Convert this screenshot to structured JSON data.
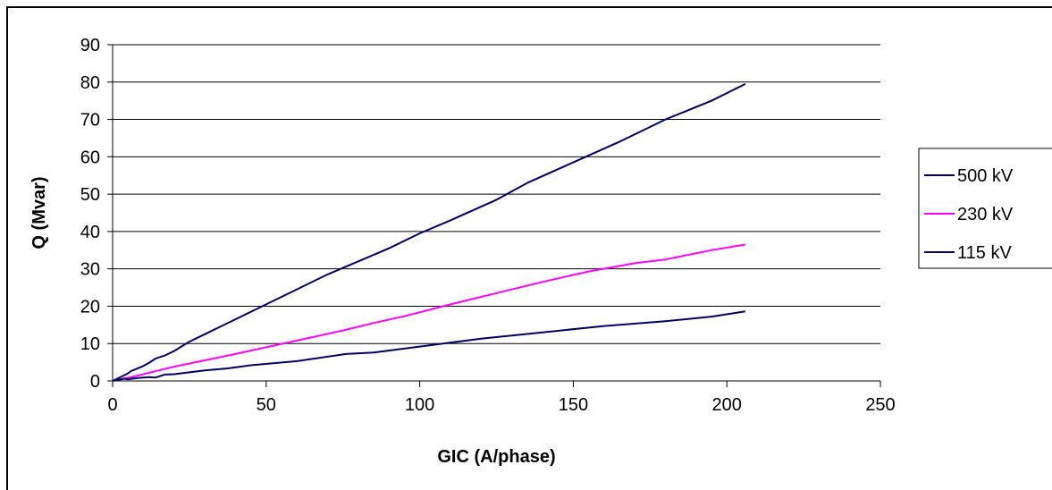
{
  "chart_data": {
    "type": "line",
    "title": "",
    "xlabel": "GIC (A/phase)",
    "ylabel": "Q (Mvar)",
    "xlim": [
      0,
      250
    ],
    "ylim": [
      0,
      90
    ],
    "x_ticks": [
      0,
      50,
      100,
      150,
      200,
      250
    ],
    "y_ticks": [
      0,
      10,
      20,
      30,
      40,
      50,
      60,
      70,
      80,
      90
    ],
    "grid": "horizontal",
    "legend_position": "right",
    "series": [
      {
        "name": "500 kV",
        "color": "#000066",
        "points": [
          [
            0,
            0
          ],
          [
            2,
            0.8
          ],
          [
            3,
            1.2
          ],
          [
            5,
            2
          ],
          [
            6,
            2.6
          ],
          [
            8,
            3.3
          ],
          [
            10,
            4
          ],
          [
            12,
            4.9
          ],
          [
            14,
            6
          ],
          [
            17,
            6.8
          ],
          [
            20,
            8
          ],
          [
            25,
            10.5
          ],
          [
            30,
            12.5
          ],
          [
            40,
            16.5
          ],
          [
            50,
            20.5
          ],
          [
            60,
            24.5
          ],
          [
            70,
            28.5
          ],
          [
            80,
            32
          ],
          [
            90,
            35.5
          ],
          [
            100,
            39.5
          ],
          [
            110,
            43
          ],
          [
            125,
            48.5
          ],
          [
            135,
            53
          ],
          [
            150,
            58.5
          ],
          [
            165,
            64
          ],
          [
            180,
            70
          ],
          [
            195,
            75
          ],
          [
            206,
            79.5
          ]
        ]
      },
      {
        "name": "230 kV",
        "color": "#ff00ff",
        "points": [
          [
            0,
            0
          ],
          [
            3,
            0.5
          ],
          [
            6,
            1
          ],
          [
            10,
            1.8
          ],
          [
            15,
            2.8
          ],
          [
            20,
            3.8
          ],
          [
            30,
            5.5
          ],
          [
            40,
            7.2
          ],
          [
            50,
            9
          ],
          [
            60,
            10.8
          ],
          [
            75,
            13.5
          ],
          [
            85,
            15.5
          ],
          [
            95,
            17.3
          ],
          [
            110,
            20.5
          ],
          [
            125,
            23.5
          ],
          [
            140,
            26.5
          ],
          [
            155,
            29.3
          ],
          [
            170,
            31.5
          ],
          [
            180,
            32.5
          ],
          [
            195,
            35
          ],
          [
            206,
            36.5
          ]
        ]
      },
      {
        "name": "115 kV",
        "color": "#000066",
        "points": [
          [
            0,
            0
          ],
          [
            2,
            0.3
          ],
          [
            4,
            0.6
          ],
          [
            5,
            0.4
          ],
          [
            8,
            0.8
          ],
          [
            12,
            1
          ],
          [
            14,
            0.9
          ],
          [
            17,
            1.7
          ],
          [
            20,
            1.8
          ],
          [
            30,
            2.8
          ],
          [
            38,
            3.4
          ],
          [
            45,
            4.2
          ],
          [
            60,
            5.3
          ],
          [
            76,
            7.2
          ],
          [
            85,
            7.6
          ],
          [
            100,
            9.2
          ],
          [
            120,
            11.3
          ],
          [
            140,
            13
          ],
          [
            160,
            14.7
          ],
          [
            180,
            16
          ],
          [
            195,
            17.2
          ],
          [
            206,
            18.6
          ]
        ]
      }
    ]
  }
}
